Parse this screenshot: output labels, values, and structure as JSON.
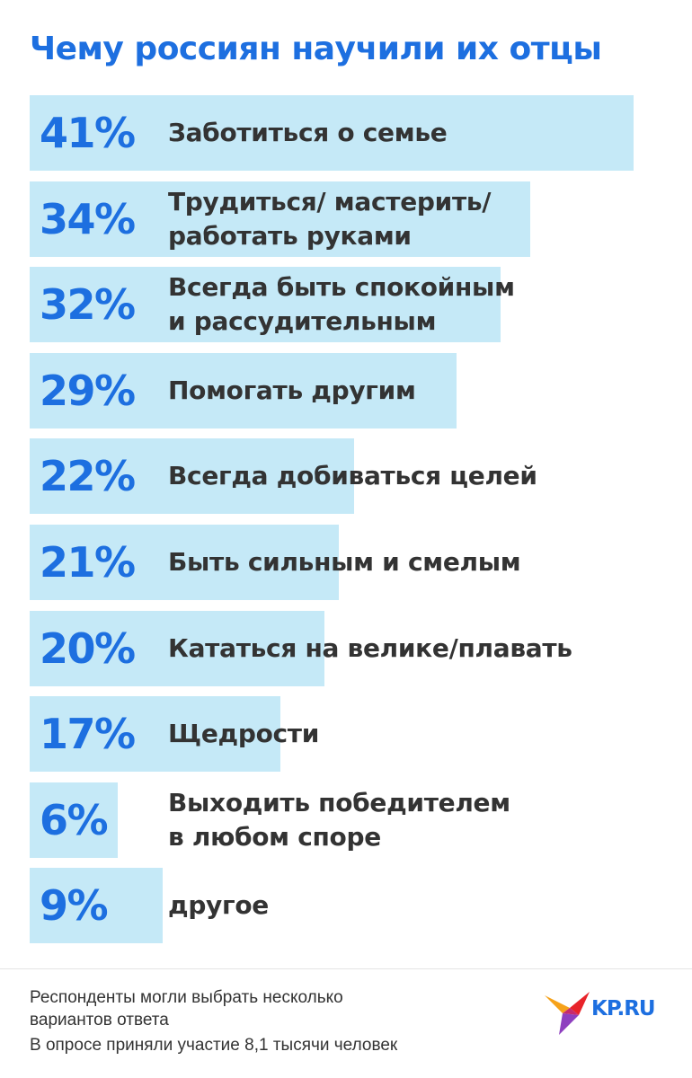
{
  "chart_data": {
    "type": "bar",
    "title": "Чему россиян научили их отцы",
    "categories": [
      "Заботиться о семье",
      "Трудиться/ мастерить/\nработать руками",
      "Всегда быть спокойным\nи рассудительным",
      "Помогать другим",
      "Всегда добиваться целей",
      "Быть сильным и смелым",
      "Кататься на велике/плавать",
      "Щедрости",
      "Выходить победителем\nв любом споре",
      "другое"
    ],
    "values": [
      41,
      34,
      32,
      29,
      22,
      21,
      20,
      17,
      6,
      9
    ],
    "value_labels": [
      "41%",
      "34%",
      "32%",
      "29%",
      "22%",
      "21%",
      "20%",
      "17%",
      "6%",
      "9%"
    ],
    "unit": "%",
    "orientation": "horizontal",
    "grid": false,
    "colors": {
      "bar": "#c5e9f7",
      "value_text": "#1d6fe0",
      "label_text": "#333333",
      "title": "#1d6fe0"
    }
  },
  "footnote": {
    "line1": "Респонденты могли выбрать несколько",
    "line2": "вариантов ответа",
    "line3": "В опросе приняли участие 8,1 тысячи человек"
  },
  "logo": {
    "text": "KP.RU",
    "icon": "kp-bird-logo-icon"
  }
}
